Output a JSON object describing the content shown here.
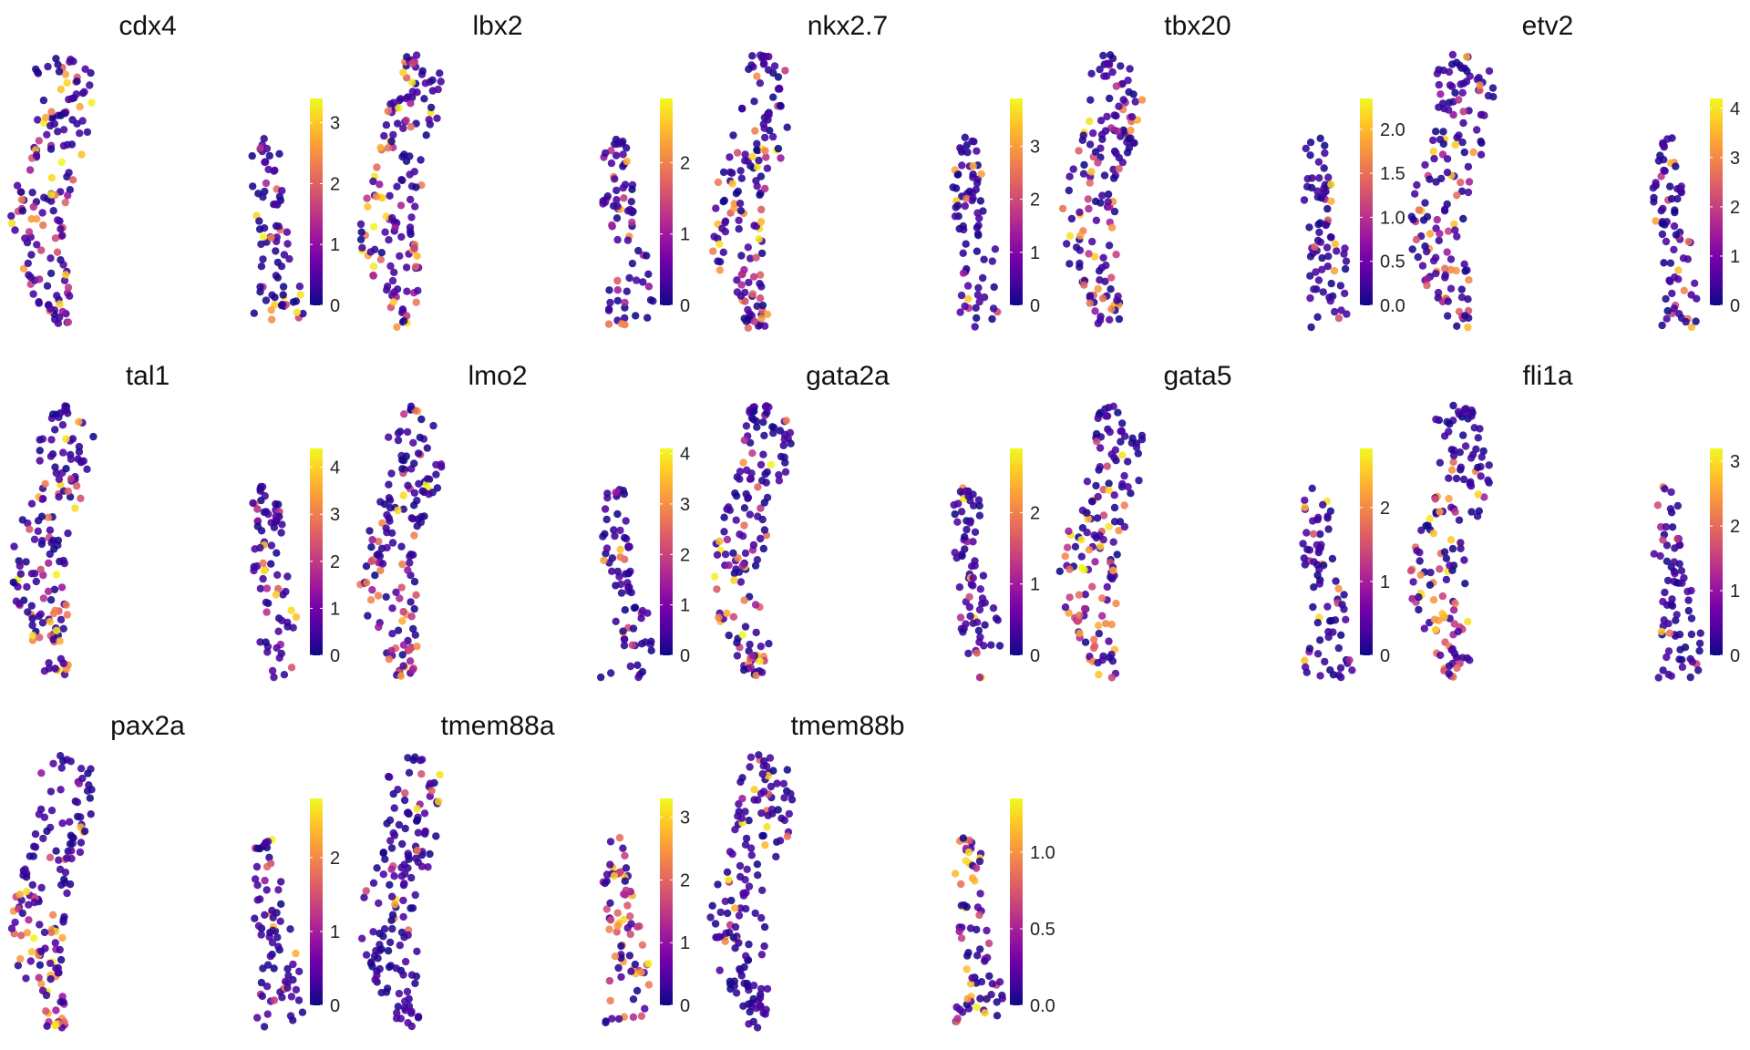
{
  "chart_data": [
    {
      "type": "scatter",
      "title": "cdx4",
      "colorbar_ticks": [
        "0",
        "1",
        "2",
        "3"
      ],
      "color_max": 3.4
    },
    {
      "type": "scatter",
      "title": "lbx2",
      "colorbar_ticks": [
        "0",
        "1",
        "2"
      ],
      "color_max": 2.9
    },
    {
      "type": "scatter",
      "title": "nkx2.7",
      "colorbar_ticks": [
        "0",
        "1",
        "2",
        "3"
      ],
      "color_max": 3.9
    },
    {
      "type": "scatter",
      "title": "tbx20",
      "colorbar_ticks": [
        "0.0",
        "0.5",
        "1.0",
        "1.5",
        "2.0"
      ],
      "color_max": 2.35
    },
    {
      "type": "scatter",
      "title": "etv2",
      "colorbar_ticks": [
        "0",
        "1",
        "2",
        "3",
        "4"
      ],
      "color_max": 4.2
    },
    {
      "type": "scatter",
      "title": "tal1",
      "colorbar_ticks": [
        "0",
        "1",
        "2",
        "3",
        "4"
      ],
      "color_max": 4.4
    },
    {
      "type": "scatter",
      "title": "lmo2",
      "colorbar_ticks": [
        "0",
        "1",
        "2",
        "3",
        "4"
      ],
      "color_max": 4.1
    },
    {
      "type": "scatter",
      "title": "gata2a",
      "colorbar_ticks": [
        "0",
        "1",
        "2"
      ],
      "color_max": 2.9
    },
    {
      "type": "scatter",
      "title": "gata5",
      "colorbar_ticks": [
        "0",
        "1",
        "2"
      ],
      "color_max": 2.8
    },
    {
      "type": "scatter",
      "title": "fli1a",
      "colorbar_ticks": [
        "0",
        "1",
        "2",
        "3"
      ],
      "color_max": 3.2
    },
    {
      "type": "scatter",
      "title": "pax2a",
      "colorbar_ticks": [
        "0",
        "1",
        "2"
      ],
      "color_max": 2.8
    },
    {
      "type": "scatter",
      "title": "tmem88a",
      "colorbar_ticks": [
        "0",
        "1",
        "2",
        "3"
      ],
      "color_max": 3.3
    },
    {
      "type": "scatter",
      "title": "tmem88b",
      "colorbar_ticks": [
        "0.0",
        "0.5",
        "1.0"
      ],
      "color_max": 1.35
    }
  ],
  "colors": {
    "colormap": "plasma",
    "low": "#0d0887",
    "mid_low": "#7e03a8",
    "mid": "#cc4778",
    "mid_high": "#f89540",
    "high": "#f0f921"
  }
}
